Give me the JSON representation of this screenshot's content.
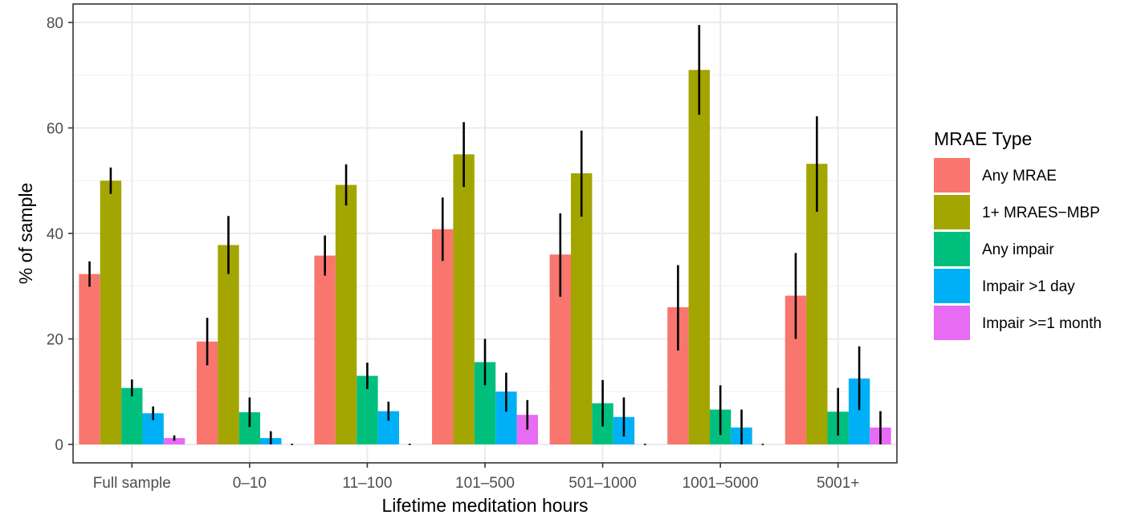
{
  "chart_data": {
    "type": "bar",
    "title": "",
    "xlabel": "Lifetime meditation hours",
    "ylabel": "% of sample",
    "ylim": [
      -3.5,
      83.5
    ],
    "yticks": [
      0,
      20,
      40,
      60,
      80
    ],
    "grid": true,
    "legend_position": "right",
    "legend_title": "MRAE Type",
    "categories": [
      "Full sample",
      "0–10",
      "11–100",
      "101–500",
      "501–1000",
      "1001–5000",
      "5001+"
    ],
    "series": [
      {
        "name": "Any MRAE",
        "color": "#F8766D",
        "values": [
          32.3,
          19.5,
          35.8,
          40.8,
          36.0,
          26.0,
          28.2
        ],
        "err_low": [
          29.9,
          15.0,
          32.0,
          34.8,
          28.0,
          17.8,
          20.0
        ],
        "err_high": [
          34.7,
          24.0,
          39.6,
          46.8,
          43.8,
          34.0,
          36.3
        ]
      },
      {
        "name": "1+ MRAES−MBP",
        "color": "#A3A500",
        "values": [
          50.0,
          37.8,
          49.2,
          55.0,
          51.4,
          71.0,
          53.2
        ],
        "err_low": [
          47.5,
          32.3,
          45.3,
          48.8,
          43.2,
          62.5,
          44.1
        ],
        "err_high": [
          52.5,
          43.3,
          53.1,
          61.1,
          59.5,
          79.5,
          62.2
        ]
      },
      {
        "name": "Any impair",
        "color": "#00BF7D",
        "values": [
          10.7,
          6.1,
          13.0,
          15.6,
          7.8,
          6.6,
          6.2
        ],
        "err_low": [
          9.1,
          3.3,
          10.5,
          11.2,
          3.4,
          1.8,
          1.7
        ],
        "err_high": [
          12.3,
          8.9,
          15.5,
          20.0,
          12.2,
          11.2,
          10.7
        ]
      },
      {
        "name": "Impair >1 day",
        "color": "#00B0F6",
        "values": [
          5.9,
          1.2,
          6.3,
          10.0,
          5.2,
          3.2,
          12.5
        ],
        "err_low": [
          4.6,
          0.0,
          4.5,
          6.2,
          1.5,
          0.0,
          6.5
        ],
        "err_high": [
          7.2,
          2.5,
          8.1,
          13.6,
          8.9,
          6.6,
          18.6
        ]
      },
      {
        "name": "Impair >=1 month",
        "color": "#E76BF3",
        "values": [
          1.2,
          0.0,
          0.0,
          5.6,
          0.0,
          0.0,
          3.2
        ],
        "err_low": [
          0.7,
          0.0,
          0.0,
          2.8,
          0.0,
          0.0,
          0.0
        ],
        "err_high": [
          1.7,
          0.0,
          0.0,
          8.4,
          0.0,
          0.0,
          6.3
        ]
      }
    ]
  }
}
